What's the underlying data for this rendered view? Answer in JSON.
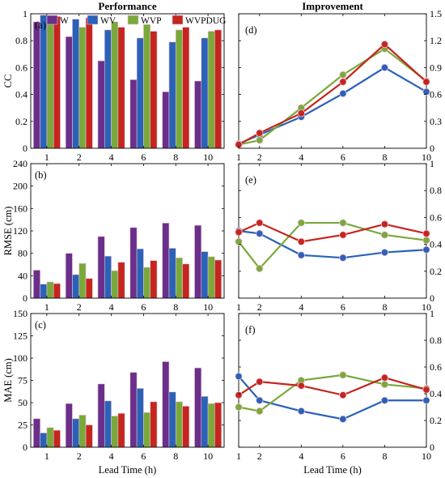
{
  "colors": {
    "W": "#6a2f8a",
    "WV": "#2a62b8",
    "WVP": "#79a93a",
    "WVPDUG": "#c4261e"
  },
  "chart_data": [
    {
      "panel": "(a)",
      "type": "bar",
      "title": "Performance",
      "ylabel": "CC",
      "xlabel": "",
      "categories": [
        "1",
        "2",
        "4",
        "6",
        "8",
        "10"
      ],
      "ylim": [
        0,
        1
      ],
      "yticks": [
        "0",
        "0.2",
        "0.4",
        "0.6",
        "0.8",
        "1"
      ],
      "legend": "top-left",
      "series": [
        {
          "name": "W",
          "values": [
            0.94,
            0.83,
            0.65,
            0.51,
            0.42,
            0.5
          ]
        },
        {
          "name": "WV",
          "values": [
            0.99,
            0.96,
            0.88,
            0.82,
            0.79,
            0.82
          ]
        },
        {
          "name": "WVP",
          "values": [
            0.98,
            0.9,
            0.94,
            0.92,
            0.88,
            0.87
          ]
        },
        {
          "name": "WVPDUG",
          "values": [
            0.98,
            0.97,
            0.9,
            0.87,
            0.9,
            0.88
          ]
        }
      ]
    },
    {
      "panel": "(b)",
      "type": "bar",
      "ylabel": "RMSE (cm)",
      "xlabel": "",
      "categories": [
        "1",
        "2",
        "4",
        "6",
        "8",
        "10"
      ],
      "ylim": [
        0,
        240
      ],
      "yticks": [
        "0",
        "40",
        "80",
        "120",
        "160",
        "200",
        "240"
      ],
      "series": [
        {
          "name": "W",
          "values": [
            50,
            80,
            110,
            126,
            134,
            130
          ]
        },
        {
          "name": "WV",
          "values": [
            25,
            42,
            75,
            88,
            89,
            83
          ]
        },
        {
          "name": "WVP",
          "values": [
            29,
            62,
            49,
            55,
            72,
            74
          ]
        },
        {
          "name": "WVPDUG",
          "values": [
            26,
            35,
            64,
            67,
            61,
            68
          ]
        }
      ]
    },
    {
      "panel": "(c)",
      "type": "bar",
      "ylabel": "MAE (cm)",
      "xlabel": "Lead Time (h)",
      "categories": [
        "1",
        "2",
        "4",
        "6",
        "8",
        "10"
      ],
      "ylim": [
        0,
        150
      ],
      "yticks": [
        "0",
        "25",
        "50",
        "75",
        "100",
        "125",
        "150"
      ],
      "series": [
        {
          "name": "W",
          "values": [
            32,
            49,
            71,
            84,
            96,
            89
          ]
        },
        {
          "name": "WV",
          "values": [
            16,
            32,
            52,
            66,
            62,
            57
          ]
        },
        {
          "name": "WVP",
          "values": [
            22,
            36,
            35,
            39,
            51,
            49
          ]
        },
        {
          "name": "WVPDUG",
          "values": [
            19,
            25,
            38,
            51,
            46,
            50
          ]
        }
      ]
    },
    {
      "panel": "(d)",
      "type": "line",
      "title": "Improvement",
      "ylabel": "",
      "xlabel": "",
      "x": [
        1,
        2,
        4,
        6,
        8,
        10
      ],
      "xlim": [
        1,
        10
      ],
      "ylim": [
        0,
        1.5
      ],
      "yticks": [
        "0",
        "0.3",
        "0.6",
        "0.9",
        "1.2",
        "1.5"
      ],
      "series": [
        {
          "name": "WV",
          "values": [
            0.05,
            0.15,
            0.35,
            0.61,
            0.9,
            0.63
          ]
        },
        {
          "name": "WVP",
          "values": [
            0.04,
            0.09,
            0.45,
            0.82,
            1.11,
            0.75
          ]
        },
        {
          "name": "WVPDUG",
          "values": [
            0.04,
            0.17,
            0.39,
            0.74,
            1.16,
            0.74
          ]
        }
      ]
    },
    {
      "panel": "(e)",
      "type": "line",
      "ylabel": "",
      "xlabel": "",
      "x": [
        1,
        2,
        4,
        6,
        8,
        10
      ],
      "xlim": [
        1,
        10
      ],
      "ylim": [
        0,
        1
      ],
      "yticks": [
        "0",
        "0.2",
        "0.4",
        "0.6",
        "0.8",
        "1"
      ],
      "series": [
        {
          "name": "WV",
          "values": [
            0.5,
            0.48,
            0.32,
            0.3,
            0.34,
            0.36
          ]
        },
        {
          "name": "WVP",
          "values": [
            0.42,
            0.22,
            0.56,
            0.56,
            0.47,
            0.43
          ]
        },
        {
          "name": "WVPDUG",
          "values": [
            0.49,
            0.56,
            0.42,
            0.47,
            0.55,
            0.48
          ]
        }
      ]
    },
    {
      "panel": "(f)",
      "type": "line",
      "ylabel": "",
      "xlabel": "Lead Time (h)",
      "x": [
        1,
        2,
        4,
        6,
        8,
        10
      ],
      "xlim": [
        1,
        10
      ],
      "ylim": [
        0,
        1
      ],
      "yticks": [
        "0",
        "0.2",
        "0.4",
        "0.6",
        "0.8",
        "1"
      ],
      "series": [
        {
          "name": "WV",
          "values": [
            0.53,
            0.35,
            0.27,
            0.21,
            0.35,
            0.35
          ]
        },
        {
          "name": "WVP",
          "values": [
            0.3,
            0.27,
            0.5,
            0.54,
            0.47,
            0.44
          ]
        },
        {
          "name": "WVPDUG",
          "values": [
            0.39,
            0.49,
            0.46,
            0.39,
            0.52,
            0.43
          ]
        }
      ]
    }
  ]
}
